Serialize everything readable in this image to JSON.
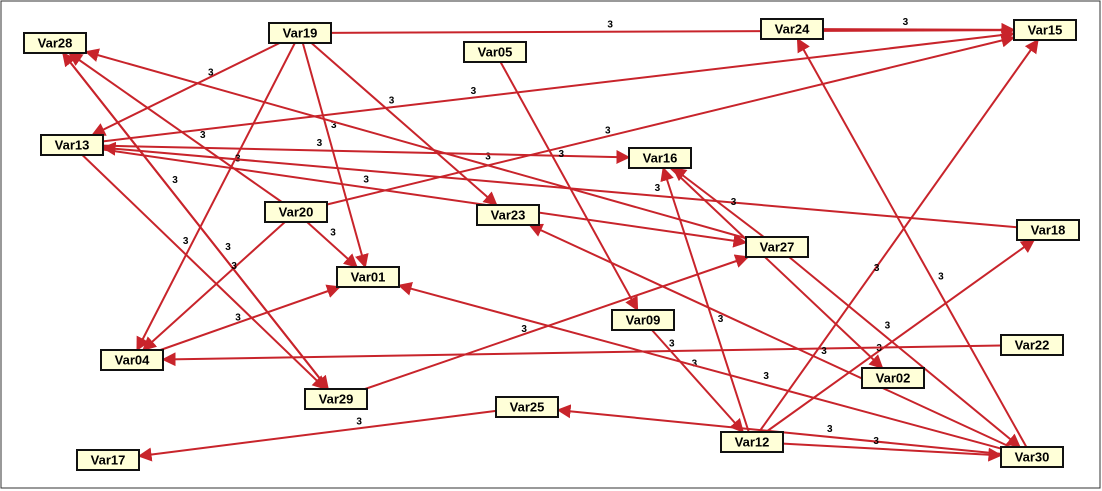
{
  "nodes": [
    {
      "label": "Var28"
    },
    {
      "label": "Var19"
    },
    {
      "label": "Var05"
    },
    {
      "label": "Var24"
    },
    {
      "label": "Var15"
    },
    {
      "label": "Var13"
    },
    {
      "label": "Var16"
    },
    {
      "label": "Var20"
    },
    {
      "label": "Var23"
    },
    {
      "label": "Var27"
    },
    {
      "label": "Var18"
    },
    {
      "label": "Var01"
    },
    {
      "label": "Var09"
    },
    {
      "label": "Var04"
    },
    {
      "label": "Var22"
    },
    {
      "label": "Var02"
    },
    {
      "label": "Var29"
    },
    {
      "label": "Var25"
    },
    {
      "label": "Var12"
    },
    {
      "label": "Var30"
    },
    {
      "label": "Var17"
    }
  ],
  "edges": [
    {
      "from": "Var19",
      "to": "Var15",
      "label": "3"
    },
    {
      "from": "Var24",
      "to": "Var15",
      "label": "3"
    },
    {
      "from": "Var13",
      "to": "Var15",
      "label": "3"
    },
    {
      "from": "Var20",
      "to": "Var15",
      "label": "3"
    },
    {
      "from": "Var19",
      "to": "Var13",
      "label": "3"
    },
    {
      "from": "Var19",
      "to": "Var04",
      "label": "3"
    },
    {
      "from": "Var19",
      "to": "Var01",
      "label": "3"
    },
    {
      "from": "Var19",
      "to": "Var23",
      "label": "3"
    },
    {
      "from": "Var28",
      "to": "Var29",
      "label": "3"
    },
    {
      "from": "Var20",
      "to": "Var28",
      "label": "3"
    },
    {
      "from": "Var27",
      "to": "Var28",
      "label": "3"
    },
    {
      "from": "Var29",
      "to": "Var28",
      "label": "3"
    },
    {
      "from": "Var13",
      "to": "Var16",
      "label": "3"
    },
    {
      "from": "Var13",
      "to": "Var27",
      "label": "3"
    },
    {
      "from": "Var18",
      "to": "Var13",
      "label": "3"
    },
    {
      "from": "Var13",
      "to": "Var29",
      "label": "3"
    },
    {
      "from": "Var20",
      "to": "Var01",
      "label": "3"
    },
    {
      "from": "Var20",
      "to": "Var04",
      "label": "3"
    },
    {
      "from": "Var04",
      "to": "Var01",
      "label": "3"
    },
    {
      "from": "Var05",
      "to": "Var09",
      "label": "3"
    },
    {
      "from": "Var09",
      "to": "Var12",
      "label": "3"
    },
    {
      "from": "Var27",
      "to": "Var16",
      "label": "3"
    },
    {
      "from": "Var12",
      "to": "Var16",
      "label": "3"
    },
    {
      "from": "Var16",
      "to": "Var02",
      "label": "3"
    },
    {
      "from": "Var27",
      "to": "Var30",
      "label": "3"
    },
    {
      "from": "Var29",
      "to": "Var27",
      "label": "3"
    },
    {
      "from": "Var30",
      "to": "Var24",
      "label": "3"
    },
    {
      "from": "Var12",
      "to": "Var15",
      "label": "3"
    },
    {
      "from": "Var12",
      "to": "Var18",
      "label": "3"
    },
    {
      "from": "Var22",
      "to": "Var04",
      "label": "3"
    },
    {
      "from": "Var30",
      "to": "Var25",
      "label": "3"
    },
    {
      "from": "Var12",
      "to": "Var30",
      "label": "3"
    },
    {
      "from": "Var25",
      "to": "Var17",
      "label": "3"
    },
    {
      "from": "Var30",
      "to": "Var23",
      "label": "3"
    },
    {
      "from": "Var30",
      "to": "Var01",
      "label": "3"
    }
  ]
}
